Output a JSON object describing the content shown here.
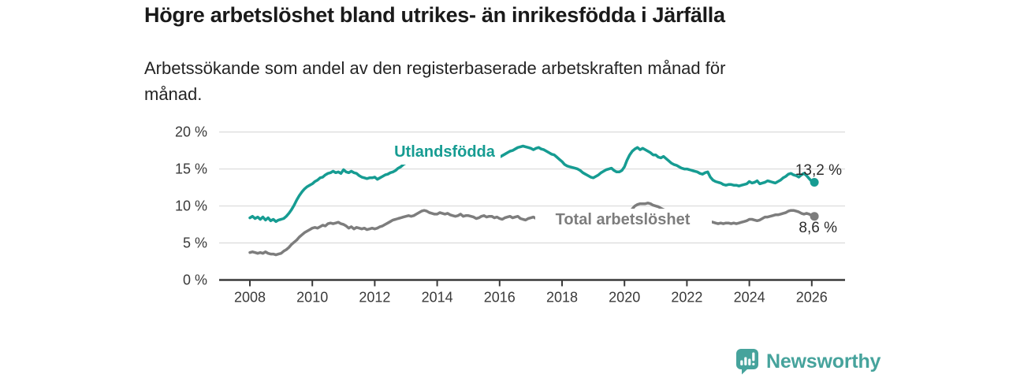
{
  "title": "Högre arbetslöshet bland utrikes- än inrikesfödda i Järfälla",
  "subtitle": "Arbetssökande som andel av den registerbaserade arbetskraften månad för månad.",
  "branding": {
    "logo_text": "Newsworthy",
    "logo_icon": "bar-chart-speech-bubble-icon",
    "logo_color": "#46a39c"
  },
  "chart_data": {
    "type": "line",
    "title": "Högre arbetslöshet bland utrikes- än inrikesfödda i Järfälla",
    "subtitle": "Arbetssökande som andel av den registerbaserade arbetskraften månad för månad.",
    "frequency": "monthly",
    "start": {
      "year": 2008,
      "month": 1
    },
    "end": {
      "year": 2026,
      "month": 2
    },
    "grid": "horizontal",
    "x_axis": {
      "tick_labels": [
        "2008",
        "2010",
        "2012",
        "2014",
        "2016",
        "2018",
        "2020",
        "2022",
        "2024",
        "2026"
      ]
    },
    "y_axis": {
      "tick_values": [
        0,
        5,
        10,
        15,
        20
      ],
      "tick_labels": [
        "0 %",
        "5 %",
        "10 %",
        "15 %",
        "20 %"
      ],
      "range": [
        0,
        20
      ],
      "unit": "%"
    },
    "series": [
      {
        "name": "Utlandsfödda",
        "color": "#169c92",
        "end_label": "13,2 %",
        "last_value": 13.2,
        "values": [
          8.4,
          8.6,
          8.3,
          8.5,
          8.2,
          8.5,
          8.1,
          8.4,
          8.0,
          8.2,
          7.9,
          8.1,
          8.2,
          8.3,
          8.6,
          9.0,
          9.5,
          10.1,
          10.8,
          11.4,
          11.9,
          12.3,
          12.6,
          12.8,
          13.0,
          13.3,
          13.5,
          13.8,
          13.9,
          14.2,
          14.4,
          14.5,
          14.7,
          14.5,
          14.6,
          14.4,
          14.9,
          14.6,
          14.5,
          14.7,
          14.5,
          14.4,
          14.1,
          13.9,
          13.8,
          13.7,
          13.8,
          13.8,
          13.9,
          13.6,
          13.8,
          14.0,
          14.2,
          14.3,
          14.5,
          14.6,
          14.8,
          15.1,
          15.3,
          15.6,
          15.8,
          15.9,
          15.8,
          15.9,
          16.0,
          15.9,
          15.8,
          15.9,
          16.0,
          16.1,
          16.0,
          16.1,
          16.0,
          16.1,
          16.0,
          16.1,
          16.2,
          16.1,
          16.0,
          16.1,
          16.2,
          16.2,
          16.1,
          16.2,
          16.1,
          16.2,
          16.2,
          16.3,
          16.3,
          16.2,
          16.3,
          16.4,
          16.3,
          16.4,
          16.3,
          16.4,
          16.6,
          16.8,
          17.0,
          17.2,
          17.4,
          17.5,
          17.7,
          17.9,
          18.0,
          18.1,
          18.0,
          17.9,
          17.8,
          17.6,
          17.8,
          17.9,
          17.7,
          17.6,
          17.4,
          17.2,
          17.0,
          16.9,
          16.6,
          16.3,
          16.0,
          15.6,
          15.4,
          15.3,
          15.2,
          15.1,
          15.0,
          14.8,
          14.5,
          14.3,
          14.1,
          13.9,
          13.8,
          14.0,
          14.2,
          14.5,
          14.7,
          14.9,
          15.0,
          15.1,
          14.8,
          14.6,
          14.6,
          14.8,
          15.3,
          16.2,
          16.9,
          17.4,
          17.7,
          17.9,
          17.6,
          17.8,
          17.6,
          17.4,
          17.2,
          16.9,
          16.9,
          16.6,
          16.5,
          16.7,
          16.4,
          16.1,
          15.8,
          15.6,
          15.5,
          15.3,
          15.1,
          15.0,
          15.0,
          14.9,
          14.8,
          14.7,
          14.6,
          14.4,
          14.3,
          14.5,
          14.6,
          13.9,
          13.5,
          13.3,
          13.2,
          13.1,
          12.9,
          12.8,
          12.9,
          12.9,
          12.8,
          12.8,
          12.7,
          12.8,
          12.9,
          13.0,
          13.3,
          13.1,
          13.2,
          13.4,
          13.0,
          13.1,
          13.2,
          13.4,
          13.3,
          13.2,
          13.1,
          13.3,
          13.5,
          13.8,
          14.0,
          14.3,
          14.4,
          14.2,
          14.1,
          13.9,
          14.2,
          14.4,
          14.1,
          13.7,
          13.3,
          13.2
        ]
      },
      {
        "name": "Total arbetslöshet",
        "color": "#7d7d7d",
        "end_label": "8,6 %",
        "last_value": 8.6,
        "values": [
          3.7,
          3.8,
          3.7,
          3.6,
          3.7,
          3.6,
          3.8,
          3.6,
          3.5,
          3.5,
          3.4,
          3.5,
          3.6,
          3.9,
          4.1,
          4.4,
          4.8,
          5.1,
          5.4,
          5.8,
          6.1,
          6.4,
          6.6,
          6.8,
          7.0,
          7.1,
          7.0,
          7.2,
          7.4,
          7.3,
          7.6,
          7.7,
          7.6,
          7.7,
          7.8,
          7.6,
          7.5,
          7.3,
          7.0,
          7.2,
          6.9,
          7.1,
          7.0,
          6.9,
          7.0,
          6.8,
          6.9,
          7.0,
          6.9,
          7.0,
          7.2,
          7.3,
          7.5,
          7.7,
          7.9,
          8.1,
          8.2,
          8.3,
          8.4,
          8.5,
          8.6,
          8.7,
          8.6,
          8.7,
          8.9,
          9.1,
          9.3,
          9.4,
          9.3,
          9.1,
          9.0,
          8.9,
          8.9,
          9.1,
          9.0,
          8.9,
          9.0,
          8.8,
          8.7,
          8.6,
          8.7,
          8.9,
          8.6,
          8.7,
          8.7,
          8.6,
          8.5,
          8.3,
          8.4,
          8.6,
          8.7,
          8.5,
          8.6,
          8.6,
          8.4,
          8.5,
          8.3,
          8.2,
          8.4,
          8.5,
          8.6,
          8.4,
          8.5,
          8.6,
          8.3,
          8.2,
          8.1,
          8.3,
          8.4,
          8.5,
          8.3,
          8.3,
          8.4,
          8.3,
          8.2,
          8.1,
          8.0,
          7.9,
          7.8,
          7.8,
          7.7,
          7.5,
          7.4,
          7.3,
          7.4,
          7.3,
          7.4,
          7.3,
          7.3,
          7.2,
          7.3,
          7.2,
          7.1,
          7.2,
          7.3,
          7.3,
          7.4,
          7.4,
          7.5,
          7.5,
          7.6,
          7.6,
          7.7,
          7.7,
          7.9,
          8.3,
          9.0,
          9.6,
          10.0,
          10.2,
          10.3,
          10.3,
          10.3,
          10.4,
          10.3,
          10.1,
          10.0,
          9.9,
          9.7,
          9.5,
          9.4,
          9.2,
          9.1,
          9.0,
          8.9,
          8.7,
          8.6,
          8.5,
          8.4,
          8.4,
          8.3,
          8.2,
          8.2,
          8.1,
          8.1,
          8.0,
          8.0,
          7.9,
          7.8,
          7.7,
          7.6,
          7.7,
          7.6,
          7.7,
          7.7,
          7.6,
          7.7,
          7.6,
          7.7,
          7.8,
          7.9,
          8.0,
          8.2,
          8.2,
          8.1,
          8.0,
          8.1,
          8.3,
          8.5,
          8.5,
          8.6,
          8.7,
          8.8,
          8.8,
          8.9,
          9.0,
          9.1,
          9.3,
          9.4,
          9.4,
          9.3,
          9.2,
          9.0,
          8.9,
          9.0,
          8.9,
          8.7,
          8.6
        ]
      }
    ]
  }
}
